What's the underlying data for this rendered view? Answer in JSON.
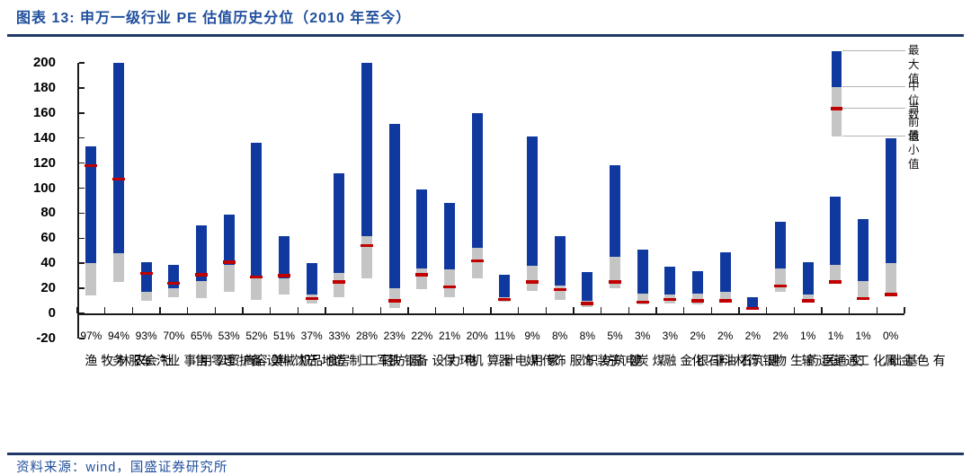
{
  "header": {
    "title": "图表 13: 申万一级行业 PE 估值历史分位（2010 年至今）"
  },
  "footer": {
    "source": "资料来源：wind，国盛证券研究所"
  },
  "legend": {
    "position": "top-right",
    "items": [
      "最大值",
      "中位数",
      "当前值",
      "最小值"
    ]
  },
  "colors": {
    "bar_blue": "#1039A0",
    "bar_gray": "#C5C5C5",
    "current_red": "#C00000",
    "title_blue": "#1F4E9C",
    "rule_navy": "#1F3864",
    "axis_black": "#1a1a1a"
  },
  "chart_data": {
    "type": "bar",
    "subtype": "floating-range-bars",
    "title": "申万一级行业 PE 估值历史分位（2010 年至今）",
    "xlabel": "",
    "ylabel": "",
    "ylim": [
      -20,
      200
    ],
    "y_ticks": [
      200,
      180,
      160,
      140,
      120,
      100,
      80,
      60,
      40,
      20,
      0,
      -20
    ],
    "grid": false,
    "categories": [
      "农林牧渔",
      "社会服务",
      "汽车",
      "公用事业",
      "商贸零售",
      "美容护理",
      "机械设备",
      "食品饮料",
      "房地产",
      "轻工制造",
      "国防军工",
      "钢铁",
      "电力设备",
      "环保",
      "计算机",
      "家用电器",
      "传媒",
      "纺织服饰",
      "建筑装饰",
      "电子",
      "煤炭",
      "非银金融",
      "石油石化",
      "建筑材料",
      "银行",
      "医药生物",
      "交通运输",
      "通信",
      "基础化工",
      "有色金属"
    ],
    "percentile_labels": [
      "97%",
      "94%",
      "93%",
      "70%",
      "65%",
      "53%",
      "52%",
      "51%",
      "37%",
      "33%",
      "28%",
      "23%",
      "22%",
      "21%",
      "20%",
      "11%",
      "9%",
      "8%",
      "8%",
      "5%",
      "3%",
      "3%",
      "2%",
      "2%",
      "2%",
      "2%",
      "1%",
      "1%",
      "1%",
      "0%"
    ],
    "series": [
      {
        "name": "最小值",
        "values": [
          14,
          25,
          10,
          13,
          12,
          17,
          11,
          15,
          8,
          13,
          28,
          4,
          19,
          13,
          28,
          9,
          18,
          11,
          5,
          20,
          7,
          8,
          7,
          9,
          3,
          17,
          10,
          26,
          13,
          15
        ]
      },
      {
        "name": "中位数",
        "values": [
          40,
          48,
          17,
          20,
          26,
          39,
          28,
          28,
          15,
          32,
          62,
          20,
          36,
          35,
          52,
          13,
          38,
          22,
          10,
          45,
          16,
          15,
          16,
          17,
          5,
          36,
          15,
          39,
          26,
          40
        ]
      },
      {
        "name": "当前值",
        "values": [
          118,
          107,
          32,
          24,
          31,
          41,
          29,
          30,
          12,
          25,
          54,
          10,
          31,
          21,
          42,
          11,
          25,
          19,
          8,
          25,
          9,
          11,
          10,
          10,
          4,
          22,
          10,
          25,
          12,
          15
        ]
      },
      {
        "name": "最大值",
        "values": [
          133,
          200,
          41,
          39,
          70,
          79,
          136,
          62,
          40,
          112,
          200,
          151,
          99,
          88,
          160,
          31,
          141,
          62,
          33,
          118,
          51,
          37,
          34,
          49,
          13,
          73,
          41,
          93,
          75,
          140
        ]
      }
    ],
    "clipped_at_top": [
      "社会服务",
      "国防军工"
    ]
  }
}
